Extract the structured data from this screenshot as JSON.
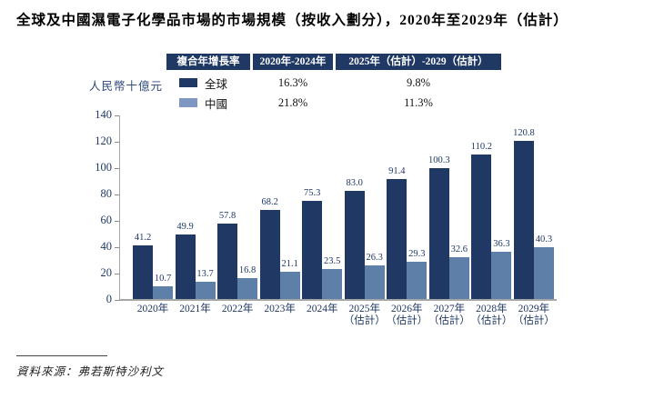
{
  "title": "全球及中國濕電子化學品市場的市場規模（按收入劃分），2020年至2029年（估計）",
  "unit_label": "人民幣十億元",
  "cagr_table": {
    "header": [
      "複合年增長率",
      "2020年-2024年",
      "2025年（估計）-2029（估計）"
    ],
    "rows": [
      {
        "label": "全球",
        "period1": "16.3%",
        "period2": "9.8%"
      },
      {
        "label": "中國",
        "period1": "21.8%",
        "period2": "11.3%"
      }
    ]
  },
  "source": "資料來源：弗若斯特沙利文",
  "colors": {
    "global": "#1f3864",
    "china_bar": "#5e80a8",
    "china_legend": "#7e96c2",
    "axis": "#a6a6a6",
    "label_text": "#1f3864"
  },
  "chart_data": {
    "type": "bar",
    "title": "全球及中國濕電子化學品市場的市場規模（按收入劃分），2020年至2029年（估計）",
    "categories": [
      "2020年",
      "2021年",
      "2022年",
      "2023年",
      "2024年",
      "2025年",
      "2026年",
      "2027年",
      "2028年",
      "2029年"
    ],
    "categories_line2": [
      "",
      "",
      "",
      "",
      "",
      "（估計）",
      "（估計）",
      "（估計）",
      "（估計）",
      "（估計）"
    ],
    "series": [
      {
        "name": "全球",
        "values": [
          41.2,
          49.9,
          57.8,
          68.2,
          75.3,
          83.0,
          91.4,
          100.3,
          110.2,
          120.8
        ]
      },
      {
        "name": "中國",
        "values": [
          10.7,
          13.7,
          16.8,
          21.1,
          23.5,
          26.3,
          29.3,
          32.6,
          36.3,
          40.3
        ]
      }
    ],
    "ylabel": "人民幣十億元",
    "ylim": [
      0,
      140
    ],
    "yticks": [
      0,
      20,
      40,
      60,
      80,
      100,
      120,
      140
    ],
    "grid": false,
    "legend_position": "top-table"
  }
}
